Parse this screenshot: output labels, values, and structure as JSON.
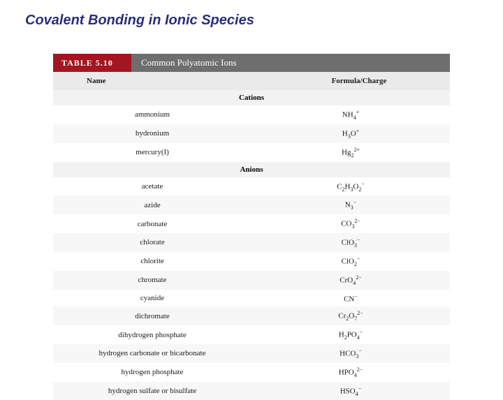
{
  "title": "Covalent Bonding in Ionic Species",
  "table": {
    "number_label": "TABLE 5.10",
    "caption": "Common Polyatomic Ions",
    "columns": {
      "name": "Name",
      "formula": "Formula/Charge"
    },
    "sections": [
      {
        "heading": "Cations",
        "rows": [
          {
            "name": "ammonium",
            "formula_html": "NH<span class='sub'>4</span><span class='sup'>+</span>"
          },
          {
            "name": "hydronium",
            "formula_html": "H<span class='sub'>3</span>O<span class='sup'>+</span>"
          },
          {
            "name": "mercury(I)",
            "formula_html": "Hg<span class='sub'>2</span><span class='sup'>2+</span>"
          }
        ]
      },
      {
        "heading": "Anions",
        "rows": [
          {
            "name": "acetate",
            "formula_html": "C<span class='sub'>2</span>H<span class='sub'>3</span>O<span class='sub'>2</span><span class='sup'>−</span>"
          },
          {
            "name": "azide",
            "formula_html": "N<span class='sub'>3</span><span class='sup'>−</span>"
          },
          {
            "name": "carbonate",
            "formula_html": "CO<span class='sub'>3</span><span class='sup'>2−</span>"
          },
          {
            "name": "chlorate",
            "formula_html": "ClO<span class='sub'>3</span><span class='sup'>−</span>"
          },
          {
            "name": "chlorite",
            "formula_html": "ClO<span class='sub'>2</span><span class='sup'>−</span>"
          },
          {
            "name": "chromate",
            "formula_html": "CrO<span class='sub'>4</span><span class='sup'>2−</span>"
          },
          {
            "name": "cyanide",
            "formula_html": "CN<span class='sup'>−</span>"
          },
          {
            "name": "dichromate",
            "formula_html": "Cr<span class='sub'>2</span>O<span class='sub'>7</span><span class='sup'>2−</span>"
          },
          {
            "name": "dihydrogen phosphate",
            "formula_html": "H<span class='sub'>2</span>PO<span class='sub'>4</span><span class='sup'>−</span>"
          },
          {
            "name": "hydrogen carbonate or bicarbonate",
            "formula_html": "HCO<span class='sub'>3</span><span class='sup'>−</span>"
          },
          {
            "name": "hydrogen phosphate",
            "formula_html": "HPO<span class='sub'>4</span><span class='sup'>2−</span>"
          },
          {
            "name": "hydrogen sulfate or bisulfate",
            "formula_html": "HSO<span class='sub'>4</span><span class='sup'>−</span>"
          }
        ]
      }
    ]
  },
  "colors": {
    "title_color": "#2a2e7a",
    "table_num_bg": "#a31621",
    "table_caption_bg": "#6e6e6e",
    "header_row_bg": "#eaeaea",
    "section_bg": "#f2f2f2",
    "row_alt_bg": "#f7f7f7"
  }
}
